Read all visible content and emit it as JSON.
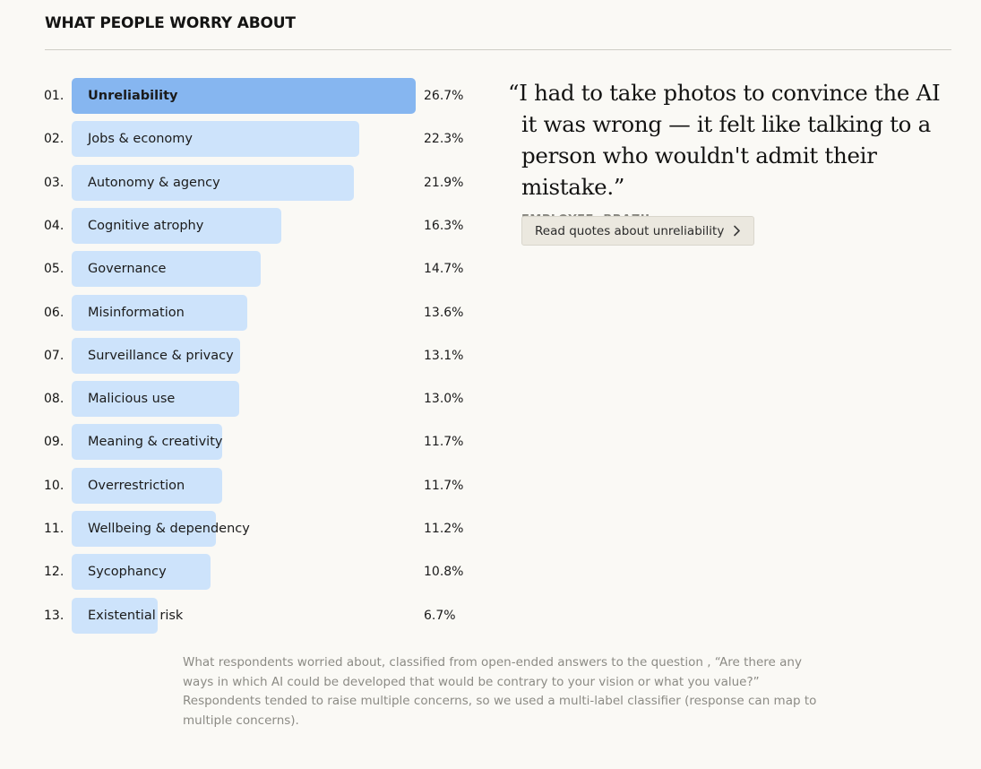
{
  "header": {
    "title": "WHAT PEOPLE WORRY ABOUT"
  },
  "chart_data": {
    "type": "bar",
    "orientation": "horizontal",
    "title": "WHAT PEOPLE WORRY ABOUT",
    "ranks": [
      "01.",
      "02.",
      "03.",
      "04.",
      "05.",
      "06.",
      "07.",
      "08.",
      "09.",
      "10.",
      "11.",
      "12.",
      "13."
    ],
    "categories": [
      "Unreliability",
      "Jobs & economy",
      "Autonomy & agency",
      "Cognitive atrophy",
      "Governance",
      "Misinformation",
      "Surveillance & privacy",
      "Malicious use",
      "Meaning & creativity",
      "Overrestriction",
      "Wellbeing & dependency",
      "Sycophancy",
      "Existential risk"
    ],
    "values": [
      26.7,
      22.3,
      21.9,
      16.3,
      14.7,
      13.6,
      13.1,
      13.0,
      11.7,
      11.7,
      11.2,
      10.8,
      6.7
    ],
    "value_labels": [
      "26.7%",
      "22.3%",
      "21.9%",
      "16.3%",
      "14.7%",
      "13.6%",
      "13.1%",
      "13.0%",
      "11.7%",
      "11.7%",
      "11.2%",
      "10.8%",
      "6.7%"
    ],
    "unit": "%",
    "xlim": [
      0,
      26.7
    ],
    "highlight_index": 0,
    "colors": {
      "highlight": "#86b6f0",
      "bar": "#cde3fb"
    },
    "grid": false,
    "legend": "none"
  },
  "quote": {
    "text": "“I had to take photos to convince the AI it was wrong — it felt like talking to a person who wouldn't admit their mistake.”",
    "attribution": "EMPLOYEE, BRAZIL",
    "button_label": "Read quotes about unreliability",
    "button_icon": "chevron-right-icon"
  },
  "caption": "What respondents worried about, classified from open-ended answers to the question , “Are there any ways in which AI could be developed that would be contrary to your vision or what you value?” Respondents tended to raise multiple concerns, so we used a multi-label classifier (response can map to multiple concerns).",
  "colors": {
    "background": "#faf9f5",
    "text": "#141413",
    "muted_text": "#8c8b85",
    "rule": "#cfcdc6",
    "button_bg": "#ebe8df"
  }
}
